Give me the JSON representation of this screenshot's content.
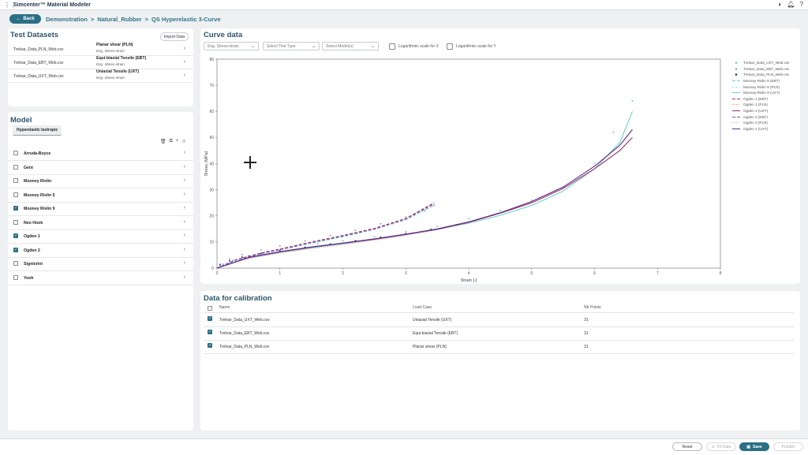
{
  "app": {
    "title": "Simcenter™ Material Modeler"
  },
  "header": {
    "back_label": "Back",
    "breadcrumbs": [
      "Demonstration",
      "Natural_Rubber",
      "QS Hyperelastic 3-Curve"
    ],
    "separator": ">"
  },
  "test_datasets": {
    "title": "Test Datasets",
    "import_label": "Import Data",
    "items": [
      {
        "file": "Treloar_Data_PLN_Web.csv",
        "case": "Planar shear (PLN)",
        "type": "Eng. Stress-strain"
      },
      {
        "file": "Treloar_Data_EBT_Web.csv",
        "case": "Equi-biaxial Tensile (EBT)",
        "type": "Eng. Stress-strain"
      },
      {
        "file": "Treloar_Data_UXT_Web.csv",
        "case": "Uniaxial Tensile (UXT)",
        "type": "Eng. Stress-strain"
      }
    ]
  },
  "model": {
    "title": "Model",
    "tab": "Hyperelastic Isotropic",
    "items": [
      {
        "label": "Arruda-Boyce",
        "checked": false
      },
      {
        "label": "Gent",
        "checked": false
      },
      {
        "label": "Mooney Rivlin",
        "checked": false
      },
      {
        "label": "Mooney Rivlin 5",
        "checked": false
      },
      {
        "label": "Mooney Rivlin 9",
        "checked": true
      },
      {
        "label": "Neo Hook",
        "checked": false
      },
      {
        "label": "Ogden 1",
        "checked": true
      },
      {
        "label": "Ogden 2",
        "checked": true
      },
      {
        "label": "Signiorini",
        "checked": false
      },
      {
        "label": "Yeoh",
        "checked": false
      }
    ]
  },
  "curve_panel": {
    "title": "Curve data",
    "select_curve": "Eng. Stress-strain",
    "select_test_type": "Select Test Type",
    "select_models": "Select Model(s)",
    "log_x": "Logarithmic scale for X",
    "log_y": "Logarithmic scale for Y"
  },
  "chart_data": {
    "type": "line",
    "xlabel": "Strain [-]",
    "ylabel": "Stress (MPa)",
    "xlim": [
      0,
      8
    ],
    "ylim": [
      0,
      80
    ],
    "xticks": [
      "0",
      "1",
      "2",
      "3",
      "4",
      "5",
      "6",
      "7",
      "8"
    ],
    "yticks": [
      "0",
      "10",
      "20",
      "30",
      "40",
      "50",
      "60",
      "70",
      "80"
    ],
    "grid": false,
    "legend_position": "right",
    "series": [
      {
        "name": "Treloar_Data_UXT_Web.csv",
        "kind": "markers",
        "color": "#6fd0c4",
        "x": [
          0.1,
          0.25,
          0.5,
          0.8,
          1.2,
          1.6,
          2.0,
          2.5,
          3.0,
          3.5,
          4.0,
          4.5,
          5.0,
          5.5,
          6.0,
          6.3,
          6.6
        ],
        "y": [
          1.5,
          3,
          4.8,
          6.5,
          8,
          9.3,
          10.5,
          12,
          14,
          16,
          19,
          22,
          26,
          31,
          40,
          52,
          64
        ]
      },
      {
        "name": "Treloar_Data_EBT_Web.csv",
        "kind": "markers",
        "color": "#9aa0a8",
        "x": [
          0.05,
          0.2,
          0.4,
          0.7,
          1.0,
          1.4,
          1.8,
          2.2,
          2.6,
          3.0,
          3.3,
          3.45
        ],
        "y": [
          1.5,
          3.5,
          5.2,
          7,
          8.5,
          10.5,
          12.5,
          14.5,
          17,
          19.5,
          22,
          24
        ]
      },
      {
        "name": "Treloar_Data_PLN_Web.csv",
        "kind": "markers",
        "color": "#1d2f6b",
        "x": [
          0.05,
          0.2,
          0.4,
          0.7,
          1.0,
          1.4,
          1.8,
          2.2,
          2.6,
          3.0,
          3.4,
          3.8,
          4.1
        ],
        "y": [
          1.2,
          2.8,
          4.2,
          5.6,
          6.8,
          8,
          9.2,
          10.5,
          11.8,
          13.2,
          14.8,
          16.6,
          18
        ]
      },
      {
        "name": "Mooney Rivlin 9 (EBT)",
        "kind": "line",
        "dash": "4 2",
        "color": "#6fd0c4",
        "x": [
          0,
          0.3,
          0.7,
          1.0,
          1.5,
          2.0,
          2.5,
          3.0,
          3.45
        ],
        "y": [
          0,
          3,
          5.5,
          7,
          9.5,
          12,
          14.8,
          18.5,
          24
        ]
      },
      {
        "name": "Mooney Rivlin 9 (PLN)",
        "kind": "line",
        "dash": "1 1.5",
        "color": "#6fd0c4",
        "x": [
          0,
          0.5,
          1.0,
          1.5,
          2.0,
          2.5,
          3.0,
          3.5,
          4.1
        ],
        "y": [
          0,
          3.8,
          6,
          7.6,
          9.2,
          10.8,
          12.8,
          15,
          18.3
        ]
      },
      {
        "name": "Mooney Rivlin 9 (UXT)",
        "kind": "line",
        "dash": "",
        "color": "#6fd0c4",
        "x": [
          0,
          0.5,
          1.0,
          1.5,
          2.0,
          2.5,
          3.0,
          3.5,
          4.0,
          4.5,
          5.0,
          5.5,
          6.0,
          6.4,
          6.6
        ],
        "y": [
          0,
          4,
          6,
          7.8,
          9.4,
          11,
          12.8,
          14.8,
          17.2,
          20.2,
          24,
          29.5,
          38,
          48,
          60
        ]
      },
      {
        "name": "Ogden 1 (EBT)",
        "kind": "line",
        "dash": "4 2",
        "color": "#b2345c",
        "x": [
          0,
          0.3,
          0.7,
          1.0,
          1.5,
          2.0,
          2.5,
          3.0,
          3.45
        ],
        "y": [
          0,
          3.2,
          5.8,
          7.3,
          10,
          12.5,
          15.2,
          19,
          25
        ]
      },
      {
        "name": "Ogden 1 (PLN)",
        "kind": "line",
        "dash": "1 1.5",
        "color": "#c8a030",
        "x": [
          0,
          0.5,
          1.0,
          1.5,
          2.0,
          2.5,
          3.0,
          3.5,
          4.1
        ],
        "y": [
          0,
          3.6,
          5.8,
          7.5,
          9,
          10.7,
          12.6,
          14.8,
          18
        ]
      },
      {
        "name": "Ogden 1 (UXT)",
        "kind": "line",
        "dash": "",
        "color": "#9b2f72",
        "x": [
          0,
          0.5,
          1.0,
          1.5,
          2.0,
          2.5,
          3.0,
          3.5,
          4.0,
          4.5,
          5.0,
          5.5,
          6.0,
          6.4,
          6.6
        ],
        "y": [
          0,
          4,
          6.2,
          8,
          9.5,
          11,
          12.8,
          14.8,
          17.5,
          21,
          25,
          30.5,
          38,
          45,
          50
        ]
      },
      {
        "name": "Ogden 2 (EBT)",
        "kind": "line",
        "dash": "4 2",
        "color": "#8a4fb0",
        "x": [
          0,
          0.3,
          0.7,
          1.0,
          1.5,
          2.0,
          2.5,
          3.0,
          3.45
        ],
        "y": [
          0,
          3.1,
          5.6,
          7.1,
          9.8,
          12.3,
          15,
          18.8,
          24.6
        ]
      },
      {
        "name": "Ogden 2 (PLN)",
        "kind": "line",
        "dash": "1 1.5",
        "color": "#b9b3d8",
        "x": [
          0,
          0.5,
          1.0,
          1.5,
          2.0,
          2.5,
          3.0,
          3.5,
          4.1
        ],
        "y": [
          0,
          3.7,
          5.9,
          7.6,
          9.1,
          10.8,
          12.7,
          14.9,
          18.2
        ]
      },
      {
        "name": "Ogden 2 (UXT)",
        "kind": "line",
        "dash": "",
        "color": "#5a2e87",
        "x": [
          0,
          0.5,
          1.0,
          1.5,
          2.0,
          2.5,
          3.0,
          3.5,
          4.0,
          4.5,
          5.0,
          5.5,
          6.0,
          6.4,
          6.6
        ],
        "y": [
          0,
          4.1,
          6.3,
          8.1,
          9.6,
          11.2,
          13,
          15,
          17.7,
          21.2,
          25.5,
          31,
          39,
          47,
          53
        ]
      }
    ]
  },
  "calibration": {
    "title": "Data for calibration",
    "headers": [
      "Name",
      "Load Case",
      "Nb Points"
    ],
    "rows": [
      {
        "name": "Treloar_Data_UXT_Web.csv",
        "load_case": "Uniaxial Tensile (UXT)",
        "points": "31"
      },
      {
        "name": "Treloar_Data_EBT_Web.csv",
        "load_case": "Equi-biaxial Tensile (EBT)",
        "points": "31"
      },
      {
        "name": "Treloar_Data_PLN_Web.csv",
        "load_case": "Planar shear (PLN)",
        "points": "31"
      }
    ]
  },
  "footer": {
    "reset": "Reset",
    "fit_data": "Fit Data",
    "save": "Save",
    "publish": "Publish"
  },
  "colors": {
    "accent": "#2b6f86",
    "title": "#2c5668"
  }
}
